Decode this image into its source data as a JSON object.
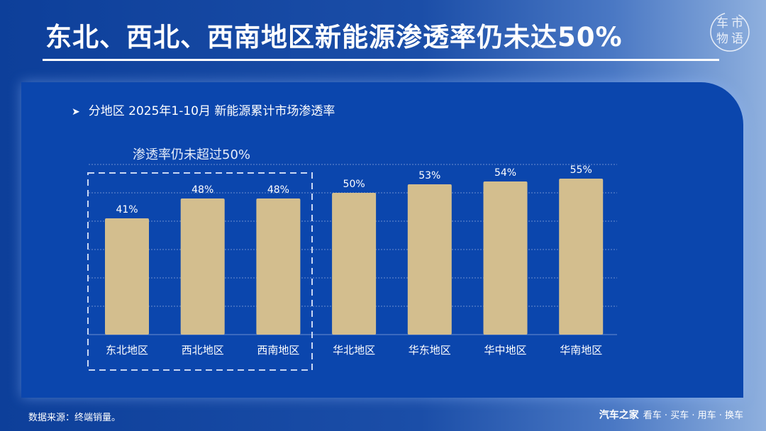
{
  "header": {
    "title": "东北、西北、西南地区新能源渗透率仍未达50%",
    "logo_text": "车市物语"
  },
  "subtitle": "分地区 2025年1-10月 新能源累计市场渗透率",
  "annotation": "渗透率仍未超过50%",
  "footer": {
    "source": "数据来源：终端销量。",
    "brand": "汽车之家",
    "slogan": "看车 · 买车 · 用车 · 换车"
  },
  "colors": {
    "bar": "#d3be8e",
    "grid": "#6e8fd0",
    "text": "#ffffff"
  },
  "chart_data": {
    "type": "bar",
    "categories": [
      "东北地区",
      "西北地区",
      "西南地区",
      "华北地区",
      "华东地区",
      "华中地区",
      "华南地区"
    ],
    "values": [
      41,
      48,
      48,
      50,
      53,
      54,
      55
    ],
    "value_labels": [
      "41%",
      "48%",
      "48%",
      "50%",
      "53%",
      "54%",
      "55%"
    ],
    "unit": "%",
    "ylim": [
      0,
      60
    ],
    "grid": true,
    "highlight_group": [
      0,
      1,
      2
    ]
  }
}
